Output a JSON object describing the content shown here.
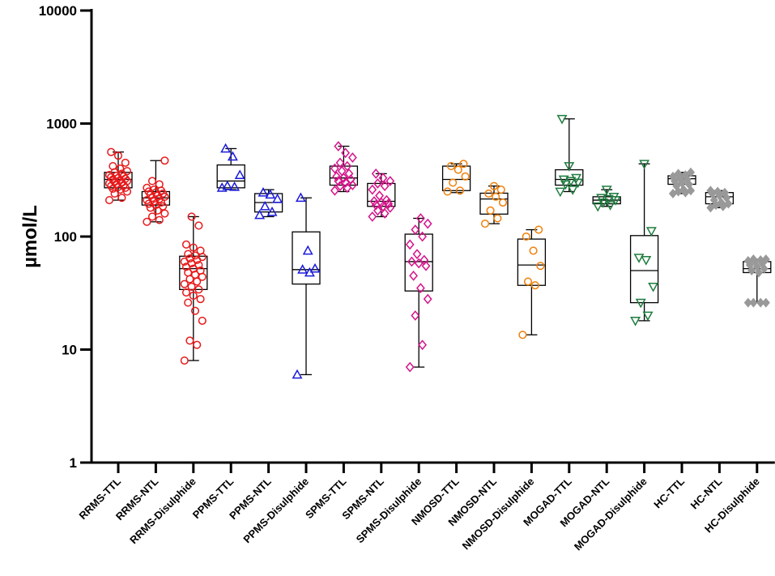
{
  "chart_data": {
    "type": "box",
    "yscale": "log",
    "ylabel": "µmol/L",
    "ylim": [
      1,
      10000
    ],
    "yticks": [
      {
        "value": 1,
        "label": "1"
      },
      {
        "value": 10,
        "label": "10"
      },
      {
        "value": 100,
        "label": "100"
      },
      {
        "value": 1000,
        "label": "1000"
      },
      {
        "value": 10000,
        "label": "10000"
      }
    ],
    "grid": false,
    "groups": [
      {
        "name": "RRMS-TTL",
        "color": "#e8191b",
        "marker": "circle",
        "min": 210,
        "q1": 270,
        "median": 320,
        "q3": 370,
        "max": 560,
        "points": [
          210,
          220,
          240,
          250,
          260,
          265,
          270,
          275,
          280,
          285,
          290,
          295,
          300,
          305,
          310,
          315,
          320,
          325,
          330,
          335,
          340,
          345,
          350,
          360,
          370,
          380,
          400,
          420,
          450,
          520,
          560
        ]
      },
      {
        "name": "RRMS-NTL",
        "color": "#e8191b",
        "marker": "circle",
        "min": 135,
        "q1": 190,
        "median": 220,
        "q3": 250,
        "max": 470,
        "points": [
          135,
          140,
          150,
          160,
          170,
          180,
          185,
          190,
          195,
          200,
          205,
          210,
          215,
          220,
          225,
          230,
          235,
          240,
          245,
          250,
          255,
          260,
          270,
          290,
          310,
          470
        ]
      },
      {
        "name": "RRMS-Disulphide",
        "color": "#e8191b",
        "marker": "circle",
        "min": 8,
        "q1": 34,
        "median": 52,
        "q3": 67,
        "max": 150,
        "points": [
          8,
          11,
          12,
          18,
          22,
          26,
          28,
          30,
          32,
          34,
          36,
          38,
          40,
          42,
          44,
          46,
          48,
          50,
          52,
          54,
          56,
          58,
          60,
          62,
          64,
          66,
          68,
          70,
          75,
          80,
          85,
          125,
          150
        ]
      },
      {
        "name": "PPMS-TTL",
        "color": "#1a1adc",
        "marker": "triangle",
        "min": 260,
        "q1": 270,
        "median": 310,
        "q3": 430,
        "max": 600,
        "points": [
          270,
          275,
          280,
          350,
          510,
          600
        ]
      },
      {
        "name": "PPMS-NTL",
        "color": "#1a1adc",
        "marker": "triangle",
        "min": 150,
        "q1": 165,
        "median": 200,
        "q3": 240,
        "max": 260,
        "points": [
          155,
          165,
          185,
          215,
          235,
          245
        ]
      },
      {
        "name": "PPMS-Disulphide",
        "color": "#1a1adc",
        "marker": "triangle",
        "min": 6,
        "q1": 38,
        "median": 51,
        "q3": 110,
        "max": 220,
        "points": [
          6,
          48,
          51,
          52,
          75,
          220
        ]
      },
      {
        "name": "SPMS-TTL",
        "color": "#d6138a",
        "marker": "diamond",
        "min": 250,
        "q1": 285,
        "median": 330,
        "q3": 420,
        "max": 630,
        "points": [
          255,
          270,
          280,
          285,
          300,
          310,
          320,
          330,
          340,
          360,
          380,
          400,
          420,
          450,
          500,
          550,
          630
        ]
      },
      {
        "name": "SPMS-NTL",
        "color": "#d6138a",
        "marker": "diamond",
        "min": 150,
        "q1": 185,
        "median": 205,
        "q3": 295,
        "max": 360,
        "points": [
          150,
          160,
          170,
          180,
          185,
          190,
          195,
          200,
          205,
          210,
          230,
          260,
          280,
          295,
          310,
          330,
          360
        ]
      },
      {
        "name": "SPMS-Disulphide",
        "color": "#d6138a",
        "marker": "diamond",
        "min": 7,
        "q1": 33,
        "median": 60,
        "q3": 105,
        "max": 145,
        "points": [
          7,
          11,
          20,
          28,
          35,
          45,
          55,
          58,
          60,
          62,
          70,
          85,
          100,
          115,
          130,
          145
        ]
      },
      {
        "name": "NMOSD-TTL",
        "color": "#f07f08",
        "marker": "circle",
        "min": 245,
        "q1": 255,
        "median": 320,
        "q3": 420,
        "max": 440,
        "points": [
          250,
          255,
          300,
          340,
          390,
          420,
          440
        ]
      },
      {
        "name": "NMOSD-NTL",
        "color": "#f07f08",
        "marker": "circle",
        "min": 130,
        "q1": 158,
        "median": 215,
        "q3": 242,
        "max": 280,
        "points": [
          130,
          145,
          170,
          200,
          225,
          240,
          260,
          280
        ]
      },
      {
        "name": "NMOSD-Disulphide",
        "color": "#f07f08",
        "marker": "circle",
        "min": 13.5,
        "q1": 37,
        "median": 56,
        "q3": 95,
        "max": 115,
        "points": [
          13.5,
          37,
          40,
          55,
          75,
          100,
          115
        ]
      },
      {
        "name": "MOGAD-TTL",
        "color": "#1e7c3f",
        "marker": "triangle-down",
        "min": 250,
        "q1": 285,
        "median": 320,
        "q3": 390,
        "max": 1100,
        "points": [
          250,
          260,
          290,
          300,
          310,
          320,
          330,
          420,
          1100
        ]
      },
      {
        "name": "MOGAD-NTL",
        "color": "#1e7c3f",
        "marker": "triangle-down",
        "min": 185,
        "q1": 195,
        "median": 210,
        "q3": 225,
        "max": 260,
        "points": [
          185,
          190,
          200,
          210,
          215,
          220,
          225,
          260
        ]
      },
      {
        "name": "MOGAD-Disulphide",
        "color": "#1e7c3f",
        "marker": "triangle-down",
        "min": 18,
        "q1": 26,
        "median": 50,
        "q3": 102,
        "max": 440,
        "points": [
          18,
          20,
          26,
          36,
          62,
          65,
          112,
          440
        ]
      },
      {
        "name": "HC-TTL",
        "color": "#999999",
        "marker": "diamond-filled",
        "min": 240,
        "q1": 290,
        "median": 325,
        "q3": 345,
        "max": 370,
        "points": [
          240,
          245,
          250,
          255,
          260,
          280,
          290,
          300,
          310,
          320,
          330,
          340,
          350,
          360,
          370
        ]
      },
      {
        "name": "HC-NTL",
        "color": "#999999",
        "marker": "diamond-filled",
        "min": 180,
        "q1": 195,
        "median": 225,
        "q3": 245,
        "max": 255,
        "points": [
          180,
          185,
          190,
          195,
          200,
          210,
          220,
          230,
          240,
          245,
          250,
          255
        ]
      },
      {
        "name": "HC-Disulphide",
        "color": "#999999",
        "marker": "diamond-filled",
        "min": 26,
        "q1": 48,
        "median": 52,
        "q3": 60,
        "max": 63,
        "points": [
          26,
          26,
          26,
          26,
          48,
          50,
          52,
          54,
          56,
          58,
          60,
          61,
          62,
          63,
          63
        ]
      }
    ]
  }
}
